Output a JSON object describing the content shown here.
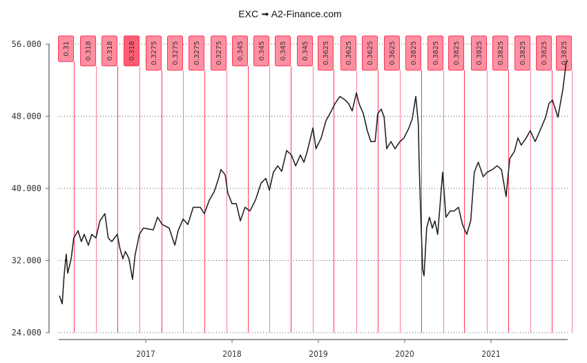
{
  "chart_data": {
    "type": "line",
    "title": "EXC ➟ A2-Finance.com",
    "xlabel": "",
    "ylabel": "",
    "x_ticks": [
      "2017",
      "2018",
      "2019",
      "2020",
      "2021"
    ],
    "y_ticks": [
      "24.000",
      "32.000",
      "40.000",
      "48.000",
      "56.000"
    ],
    "ylim": [
      24,
      56
    ],
    "xlim": [
      "2016-01-01",
      "2021-11-21"
    ],
    "grid": "horizontal dotted",
    "colors": {
      "price_line": "#222222",
      "dividend_line": "#ff3355",
      "dividend_box": "#ff8fa0",
      "dividend_box_highlight": "#ff5c75"
    },
    "series": [
      {
        "points": [
          [
            "2016-01-01",
            28.1
          ],
          [
            "2016-01-13",
            27.2
          ],
          [
            "2016-01-21",
            30.3
          ],
          [
            "2016-01-30",
            32.7
          ],
          [
            "2016-02-05",
            30.6
          ],
          [
            "2016-02-20",
            32.2
          ],
          [
            "2016-03-02",
            34.5
          ],
          [
            "2016-03-20",
            35.3
          ],
          [
            "2016-04-03",
            34.1
          ],
          [
            "2016-04-15",
            34.9
          ],
          [
            "2016-05-03",
            33.7
          ],
          [
            "2016-05-17",
            34.9
          ],
          [
            "2016-06-04",
            34.5
          ],
          [
            "2016-06-21",
            36.4
          ],
          [
            "2016-07-12",
            37.2
          ],
          [
            "2016-07-26",
            34.5
          ],
          [
            "2016-08-10",
            34.1
          ],
          [
            "2016-09-02",
            34.9
          ],
          [
            "2016-09-14",
            33.3
          ],
          [
            "2016-09-26",
            32.2
          ],
          [
            "2016-10-07",
            33.0
          ],
          [
            "2016-10-22",
            32.2
          ],
          [
            "2016-11-06",
            29.9
          ],
          [
            "2016-11-17",
            32.6
          ],
          [
            "2016-12-05",
            34.9
          ],
          [
            "2016-12-22",
            35.6
          ],
          [
            "2017-01-13",
            35.5
          ],
          [
            "2017-02-02",
            35.4
          ],
          [
            "2017-02-20",
            36.8
          ],
          [
            "2017-03-12",
            36.0
          ],
          [
            "2017-04-10",
            35.6
          ],
          [
            "2017-05-04",
            33.7
          ],
          [
            "2017-05-18",
            35.3
          ],
          [
            "2017-06-08",
            36.6
          ],
          [
            "2017-06-28",
            36.0
          ],
          [
            "2017-07-21",
            37.9
          ],
          [
            "2017-08-20",
            37.9
          ],
          [
            "2017-09-06",
            37.2
          ],
          [
            "2017-09-27",
            38.7
          ],
          [
            "2017-10-17",
            39.6
          ],
          [
            "2017-11-04",
            41.0
          ],
          [
            "2017-11-15",
            42.1
          ],
          [
            "2017-12-03",
            41.5
          ],
          [
            "2017-12-14",
            39.5
          ],
          [
            "2018-01-01",
            38.3
          ],
          [
            "2018-01-19",
            38.3
          ],
          [
            "2018-02-05",
            36.4
          ],
          [
            "2018-02-25",
            37.9
          ],
          [
            "2018-03-18",
            37.5
          ],
          [
            "2018-04-10",
            38.7
          ],
          [
            "2018-05-04",
            40.6
          ],
          [
            "2018-05-24",
            41.1
          ],
          [
            "2018-06-08",
            39.8
          ],
          [
            "2018-06-25",
            41.8
          ],
          [
            "2018-07-13",
            42.5
          ],
          [
            "2018-07-30",
            41.9
          ],
          [
            "2018-08-20",
            44.2
          ],
          [
            "2018-09-09",
            43.7
          ],
          [
            "2018-09-27",
            42.5
          ],
          [
            "2018-10-17",
            43.7
          ],
          [
            "2018-11-01",
            42.9
          ],
          [
            "2018-11-15",
            44.1
          ],
          [
            "2018-12-09",
            46.7
          ],
          [
            "2018-12-22",
            44.4
          ],
          [
            "2019-01-13",
            45.6
          ],
          [
            "2019-02-02",
            47.5
          ],
          [
            "2019-02-25",
            48.6
          ],
          [
            "2019-03-12",
            49.4
          ],
          [
            "2019-04-02",
            50.2
          ],
          [
            "2019-04-25",
            49.8
          ],
          [
            "2019-05-09",
            49.4
          ],
          [
            "2019-05-24",
            48.6
          ],
          [
            "2019-06-11",
            50.6
          ],
          [
            "2019-06-22",
            49.4
          ],
          [
            "2019-07-10",
            48.3
          ],
          [
            "2019-07-27",
            46.4
          ],
          [
            "2019-08-11",
            45.2
          ],
          [
            "2019-08-29",
            45.2
          ],
          [
            "2019-09-09",
            48.3
          ],
          [
            "2019-09-24",
            48.8
          ],
          [
            "2019-10-06",
            47.9
          ],
          [
            "2019-10-17",
            44.4
          ],
          [
            "2019-11-04",
            45.2
          ],
          [
            "2019-11-21",
            44.4
          ],
          [
            "2019-12-12",
            45.2
          ],
          [
            "2019-12-29",
            45.6
          ],
          [
            "2020-01-19",
            46.7
          ],
          [
            "2020-02-02",
            47.7
          ],
          [
            "2020-02-17",
            50.2
          ],
          [
            "2020-02-28",
            47.1
          ],
          [
            "2020-03-02",
            43.3
          ],
          [
            "2020-03-08",
            37.9
          ],
          [
            "2020-03-17",
            31.0
          ],
          [
            "2020-03-23",
            30.3
          ],
          [
            "2020-04-03",
            35.6
          ],
          [
            "2020-04-15",
            36.8
          ],
          [
            "2020-04-27",
            35.6
          ],
          [
            "2020-05-08",
            36.4
          ],
          [
            "2020-05-20",
            34.9
          ],
          [
            "2020-06-10",
            41.8
          ],
          [
            "2020-06-24",
            36.8
          ],
          [
            "2020-07-12",
            37.5
          ],
          [
            "2020-07-29",
            37.5
          ],
          [
            "2020-08-16",
            37.9
          ],
          [
            "2020-09-02",
            36.0
          ],
          [
            "2020-09-20",
            34.9
          ],
          [
            "2020-10-07",
            36.4
          ],
          [
            "2020-10-22",
            41.8
          ],
          [
            "2020-11-08",
            42.9
          ],
          [
            "2020-11-29",
            41.3
          ],
          [
            "2020-12-16",
            41.8
          ],
          [
            "2021-01-07",
            42.1
          ],
          [
            "2021-01-27",
            42.5
          ],
          [
            "2021-02-14",
            42.1
          ],
          [
            "2021-03-06",
            39.1
          ],
          [
            "2021-03-21",
            43.3
          ],
          [
            "2021-04-10",
            44.1
          ],
          [
            "2021-04-25",
            45.6
          ],
          [
            "2021-05-09",
            44.8
          ],
          [
            "2021-05-30",
            45.6
          ],
          [
            "2021-06-16",
            46.4
          ],
          [
            "2021-07-07",
            45.2
          ],
          [
            "2021-07-27",
            46.4
          ],
          [
            "2021-08-20",
            47.9
          ],
          [
            "2021-09-03",
            49.4
          ],
          [
            "2021-09-18",
            49.8
          ],
          [
            "2021-10-11",
            47.9
          ],
          [
            "2021-11-01",
            51.0
          ],
          [
            "2021-11-15",
            54.0
          ],
          [
            "2021-11-21",
            54.2
          ]
        ]
      }
    ],
    "dividends": [
      {
        "date": "2016-03-02",
        "label": "0.31"
      },
      {
        "date": "2016-06-04",
        "label": "0.318"
      },
      {
        "date": "2016-09-02",
        "label": "0.318"
      },
      {
        "date": "2016-12-05",
        "label": "0.318",
        "highlight": true
      },
      {
        "date": "2017-03-08",
        "label": "0.3275"
      },
      {
        "date": "2017-06-08",
        "label": "0.3275"
      },
      {
        "date": "2017-09-06",
        "label": "0.3275"
      },
      {
        "date": "2017-12-09",
        "label": "0.3275"
      },
      {
        "date": "2018-03-08",
        "label": "0.345"
      },
      {
        "date": "2018-06-08",
        "label": "0.345"
      },
      {
        "date": "2018-09-06",
        "label": "0.345"
      },
      {
        "date": "2018-12-09",
        "label": "0.345"
      },
      {
        "date": "2019-03-07",
        "label": "0.3625"
      },
      {
        "date": "2019-06-11",
        "label": "0.3625"
      },
      {
        "date": "2019-09-09",
        "label": "0.3625"
      },
      {
        "date": "2019-12-12",
        "label": "0.3625"
      },
      {
        "date": "2020-03-11",
        "label": "0.3825"
      },
      {
        "date": "2020-06-13",
        "label": "0.3825"
      },
      {
        "date": "2020-09-10",
        "label": "0.3825"
      },
      {
        "date": "2020-12-13",
        "label": "0.3825"
      },
      {
        "date": "2021-03-15",
        "label": "0.3825"
      },
      {
        "date": "2021-06-15",
        "label": "0.3825"
      },
      {
        "date": "2021-09-16",
        "label": "0.3825"
      },
      {
        "date": "2021-12-10",
        "label": "0.3825"
      }
    ]
  }
}
